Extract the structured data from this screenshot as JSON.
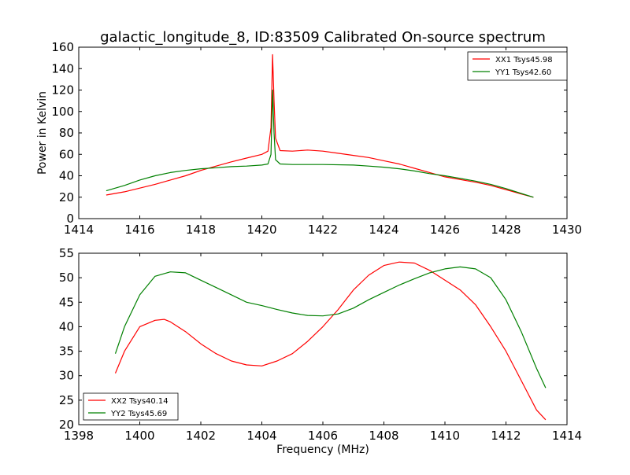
{
  "chart_data": [
    {
      "type": "line",
      "title": "galactic_longitude_8, ID:83509 Calibrated On-source spectrum",
      "xlabel": "",
      "ylabel": "Power in Kelvin",
      "xlim": [
        1414,
        1430
      ],
      "ylim": [
        0,
        160
      ],
      "xticks": [
        1414,
        1416,
        1418,
        1420,
        1422,
        1424,
        1426,
        1428,
        1430
      ],
      "yticks": [
        0,
        20,
        40,
        60,
        80,
        100,
        120,
        140,
        160
      ],
      "grid": false,
      "legend_position": "top-right",
      "series": [
        {
          "name": "XX1 Tsys45.98",
          "color": "#ff0000",
          "points": [
            [
              1414.9,
              22
            ],
            [
              1415.5,
              25
            ],
            [
              1416,
              28.5
            ],
            [
              1416.5,
              32
            ],
            [
              1417,
              36
            ],
            [
              1417.5,
              40
            ],
            [
              1418,
              45
            ],
            [
              1418.5,
              49
            ],
            [
              1419,
              53
            ],
            [
              1419.5,
              56.5
            ],
            [
              1420,
              60
            ],
            [
              1420.2,
              63
            ],
            [
              1420.3,
              85
            ],
            [
              1420.35,
              153
            ],
            [
              1420.4,
              110
            ],
            [
              1420.45,
              75
            ],
            [
              1420.6,
              63.5
            ],
            [
              1421,
              63
            ],
            [
              1421.5,
              64
            ],
            [
              1422,
              63
            ],
            [
              1422.5,
              61
            ],
            [
              1423,
              59
            ],
            [
              1423.5,
              57
            ],
            [
              1424,
              54
            ],
            [
              1424.5,
              51
            ],
            [
              1425,
              47
            ],
            [
              1425.5,
              43
            ],
            [
              1426,
              39
            ],
            [
              1426.5,
              36.5
            ],
            [
              1427,
              34
            ],
            [
              1427.5,
              31
            ],
            [
              1428,
              27
            ],
            [
              1428.5,
              23
            ],
            [
              1428.9,
              20
            ]
          ]
        },
        {
          "name": "YY1 Tsys42.60",
          "color": "#008000",
          "points": [
            [
              1414.9,
              26
            ],
            [
              1415.5,
              31
            ],
            [
              1416,
              36
            ],
            [
              1416.5,
              40
            ],
            [
              1417,
              43
            ],
            [
              1417.5,
              45
            ],
            [
              1418,
              46.5
            ],
            [
              1418.5,
              47.5
            ],
            [
              1419,
              48.5
            ],
            [
              1419.5,
              49
            ],
            [
              1420,
              50
            ],
            [
              1420.2,
              51
            ],
            [
              1420.3,
              60
            ],
            [
              1420.35,
              120
            ],
            [
              1420.4,
              80
            ],
            [
              1420.45,
              55
            ],
            [
              1420.6,
              51
            ],
            [
              1421,
              50.5
            ],
            [
              1422,
              50.5
            ],
            [
              1423,
              50
            ],
            [
              1423.5,
              49
            ],
            [
              1424,
              48
            ],
            [
              1424.5,
              46.5
            ],
            [
              1425,
              44.5
            ],
            [
              1425.5,
              42
            ],
            [
              1426,
              40
            ],
            [
              1426.5,
              37.5
            ],
            [
              1427,
              35
            ],
            [
              1427.5,
              32
            ],
            [
              1428,
              28
            ],
            [
              1428.5,
              23.5
            ],
            [
              1428.9,
              20
            ]
          ]
        }
      ]
    },
    {
      "type": "line",
      "title": "",
      "xlabel": "Frequency (MHz)",
      "ylabel": "",
      "xlim": [
        1398,
        1414
      ],
      "ylim": [
        20,
        55
      ],
      "xticks": [
        1398,
        1400,
        1402,
        1404,
        1406,
        1408,
        1410,
        1412,
        1414
      ],
      "yticks": [
        20,
        25,
        30,
        35,
        40,
        45,
        50,
        55
      ],
      "grid": false,
      "legend_position": "bottom-left",
      "series": [
        {
          "name": "XX2 Tsys40.14",
          "color": "#ff0000",
          "points": [
            [
              1399.2,
              30.5
            ],
            [
              1399.5,
              35
            ],
            [
              1400,
              40
            ],
            [
              1400.5,
              41.3
            ],
            [
              1400.8,
              41.5
            ],
            [
              1401,
              41
            ],
            [
              1401.5,
              39
            ],
            [
              1402,
              36.5
            ],
            [
              1402.5,
              34.5
            ],
            [
              1403,
              33
            ],
            [
              1403.5,
              32.2
            ],
            [
              1404,
              32
            ],
            [
              1404.5,
              33
            ],
            [
              1405,
              34.5
            ],
            [
              1405.5,
              37
            ],
            [
              1406,
              40
            ],
            [
              1406.5,
              43.5
            ],
            [
              1407,
              47.5
            ],
            [
              1407.5,
              50.5
            ],
            [
              1408,
              52.5
            ],
            [
              1408.5,
              53.2
            ],
            [
              1409,
              53
            ],
            [
              1409.5,
              51.5
            ],
            [
              1410,
              49.5
            ],
            [
              1410.5,
              47.5
            ],
            [
              1411,
              44.5
            ],
            [
              1411.5,
              40
            ],
            [
              1412,
              35
            ],
            [
              1412.5,
              29
            ],
            [
              1413,
              23
            ],
            [
              1413.3,
              21
            ]
          ]
        },
        {
          "name": "YY2 Tsys45.69",
          "color": "#008000",
          "points": [
            [
              1399.2,
              34.5
            ],
            [
              1399.5,
              40
            ],
            [
              1400,
              46.5
            ],
            [
              1400.5,
              50.3
            ],
            [
              1401,
              51.2
            ],
            [
              1401.5,
              51
            ],
            [
              1402,
              49.5
            ],
            [
              1402.5,
              48
            ],
            [
              1403,
              46.5
            ],
            [
              1403.5,
              45
            ],
            [
              1404,
              44.3
            ],
            [
              1404.5,
              43.5
            ],
            [
              1405,
              42.8
            ],
            [
              1405.5,
              42.3
            ],
            [
              1406,
              42.2
            ],
            [
              1406.5,
              42.6
            ],
            [
              1407,
              43.8
            ],
            [
              1407.5,
              45.5
            ],
            [
              1408,
              47
            ],
            [
              1408.5,
              48.5
            ],
            [
              1409,
              49.8
            ],
            [
              1409.5,
              51
            ],
            [
              1410,
              51.8
            ],
            [
              1410.5,
              52.2
            ],
            [
              1411,
              51.8
            ],
            [
              1411.5,
              50
            ],
            [
              1412,
              45.5
            ],
            [
              1412.5,
              39
            ],
            [
              1413,
              31.5
            ],
            [
              1413.3,
              27.5
            ]
          ]
        }
      ]
    }
  ]
}
